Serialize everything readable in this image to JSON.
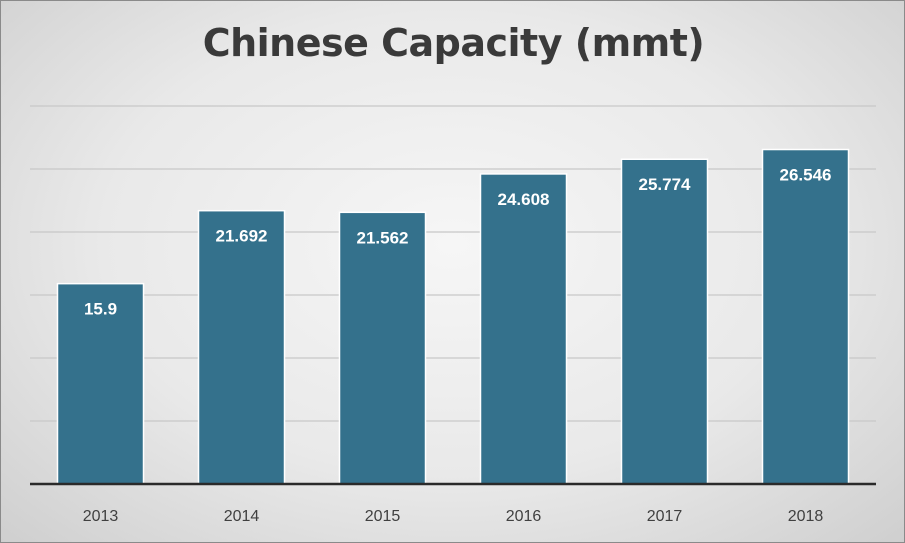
{
  "chart_data": {
    "type": "bar",
    "title": "Chinese Capacity (mmt)",
    "categories": [
      "2013",
      "2014",
      "2015",
      "2016",
      "2017",
      "2018"
    ],
    "values": [
      15.9,
      21.692,
      21.562,
      24.608,
      25.774,
      26.546
    ],
    "data_labels": [
      "15.9",
      "21.692",
      "21.562",
      "24.608",
      "25.774",
      "26.546"
    ],
    "ylim": [
      0,
      30
    ],
    "grid": true,
    "legend": "none",
    "y_axis_labels_shown": false,
    "colors": {
      "bar": "#34718c",
      "bar_stroke": "#ffffff",
      "gridline": "#c8c8c8",
      "axis": "#2a2a2a",
      "title": "#3a3a3a"
    }
  }
}
